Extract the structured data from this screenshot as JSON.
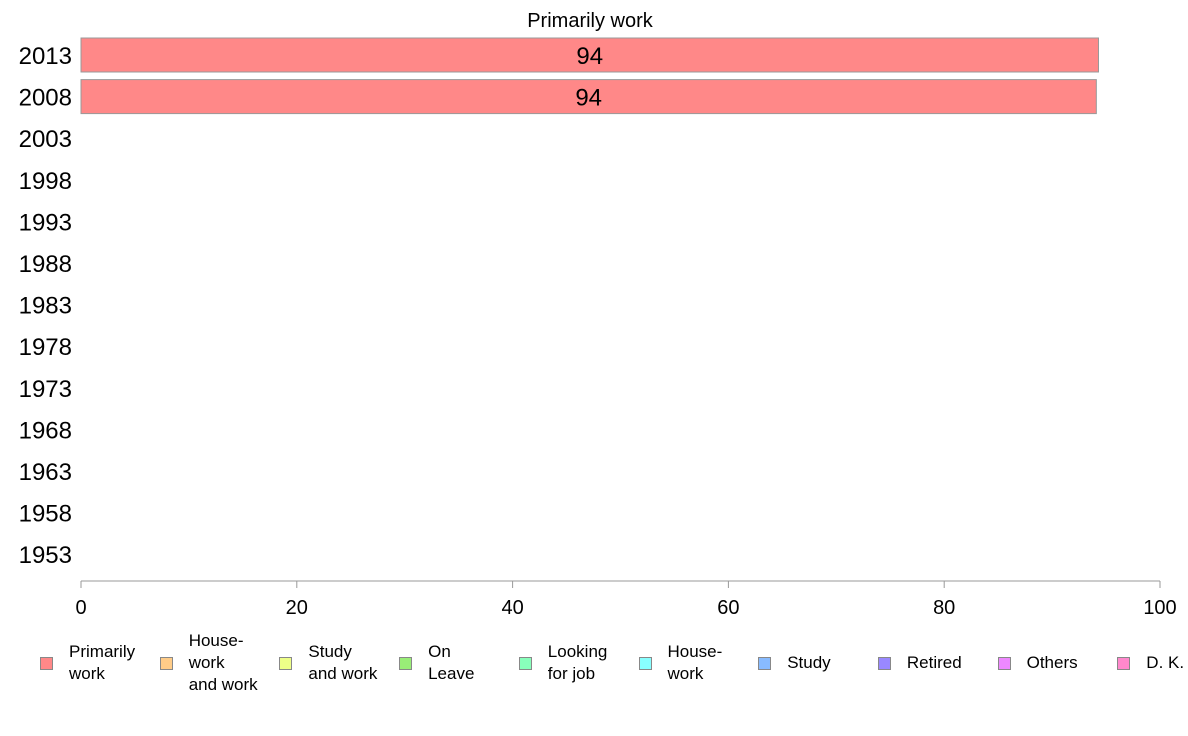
{
  "chart_data": {
    "type": "bar",
    "orientation": "horizontal",
    "title": "Primarily work",
    "categories": [
      "2013",
      "2008",
      "2003",
      "1998",
      "1993",
      "1988",
      "1983",
      "1978",
      "1973",
      "1968",
      "1963",
      "1958",
      "1953"
    ],
    "series": [
      {
        "name": "Primarily work",
        "color": "#ff8888",
        "values": [
          94.3,
          94.1,
          null,
          null,
          null,
          null,
          null,
          null,
          null,
          null,
          null,
          null,
          null
        ],
        "labels": [
          "94",
          "94",
          "",
          "",
          "",
          "",
          "",
          "",
          "",
          "",
          "",
          "",
          ""
        ]
      }
    ],
    "xlim": [
      0,
      100
    ],
    "x_ticks": [
      "0",
      "20",
      "40",
      "60",
      "80",
      "100"
    ],
    "xlabel": "",
    "ylabel": "",
    "grid": false,
    "legend_position": "bottom",
    "legend": [
      {
        "label": "Primarily\nwork",
        "color": "#ff8888"
      },
      {
        "label": "House-\nwork\nand work",
        "color": "#ffcc88"
      },
      {
        "label": "Study\nand work",
        "color": "#eeff88"
      },
      {
        "label": "On\nLeave",
        "color": "#99ee77"
      },
      {
        "label": "Looking\nfor job",
        "color": "#88ffbb"
      },
      {
        "label": "House-\nwork",
        "color": "#88ffff"
      },
      {
        "label": "Study",
        "color": "#88bbff"
      },
      {
        "label": "Retired",
        "color": "#9988ff"
      },
      {
        "label": "Others",
        "color": "#ee88ff"
      },
      {
        "label": "D. K.",
        "color": "#ff88cc"
      }
    ]
  }
}
